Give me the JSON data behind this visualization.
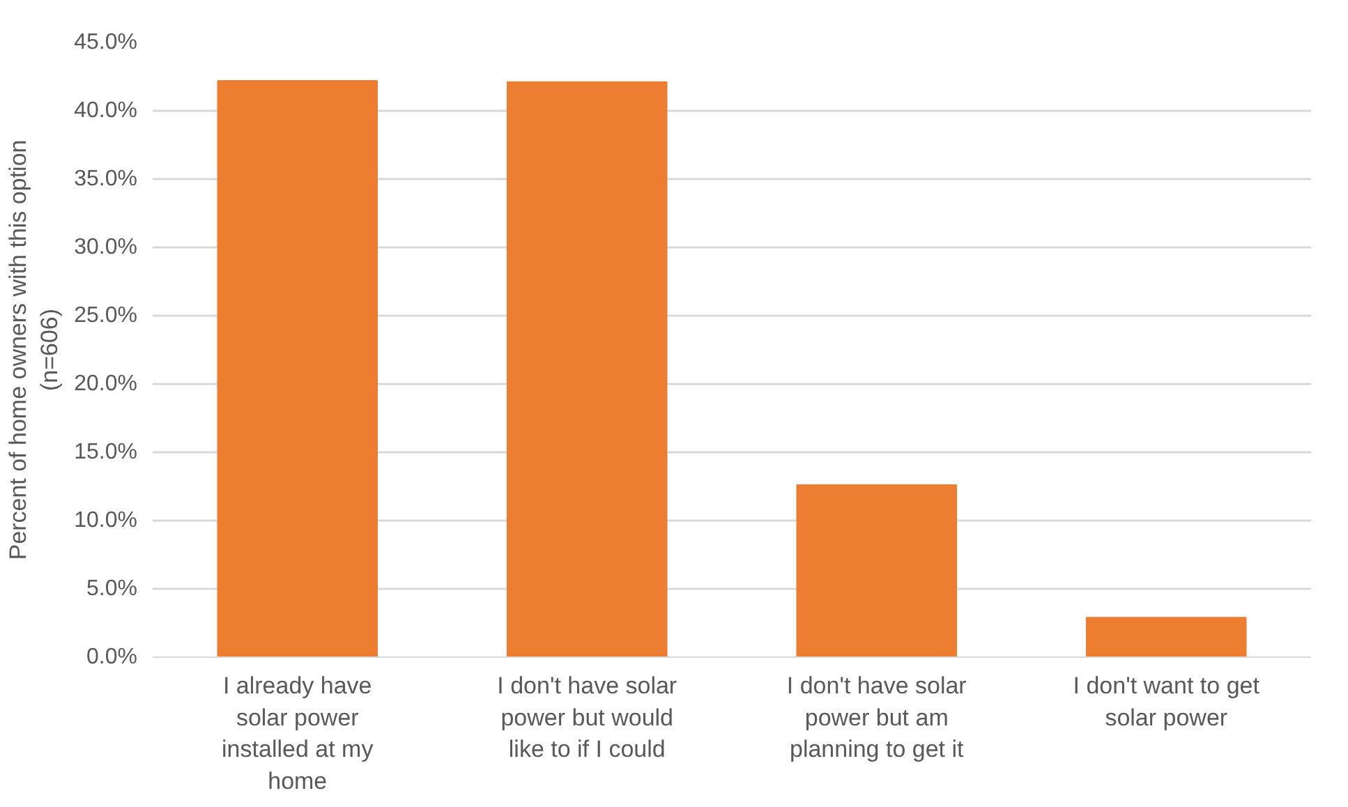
{
  "chart_data": {
    "type": "bar",
    "ylabel": "Percent of home owners with this option (n=606)",
    "categories": [
      "I already have solar power installed at my home",
      "I don't have solar power but would like to if I could",
      "I don't have solar power but am planning to get it",
      "I don't want to get solar power"
    ],
    "values": [
      42.2,
      42.1,
      12.6,
      2.9
    ],
    "color": "#ed7d31",
    "ylim": [
      0,
      45
    ],
    "yticks": [
      {
        "value": 0,
        "label": "0.0%"
      },
      {
        "value": 5,
        "label": "5.0%"
      },
      {
        "value": 10,
        "label": "10.0%"
      },
      {
        "value": 15,
        "label": "15.0%"
      },
      {
        "value": 20,
        "label": "20.0%"
      },
      {
        "value": 25,
        "label": "25.0%"
      },
      {
        "value": 30,
        "label": "30.0%"
      },
      {
        "value": 35,
        "label": "35.0%"
      },
      {
        "value": 40,
        "label": "40.0%"
      },
      {
        "value": 45,
        "label": "45.0%"
      }
    ],
    "grid": "y"
  }
}
